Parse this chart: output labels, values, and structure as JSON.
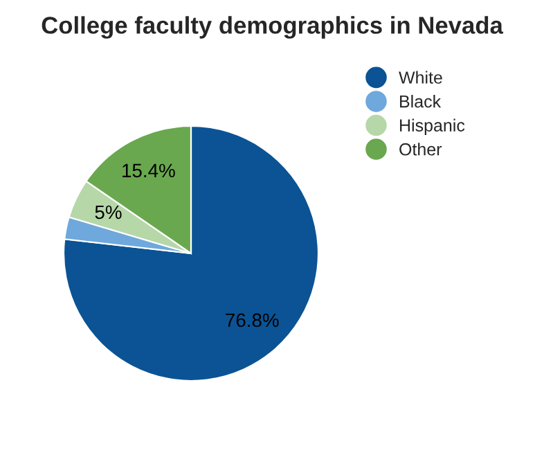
{
  "chart_data": {
    "type": "pie",
    "title": "College faculty demographics in Nevada",
    "categories": [
      "White",
      "Black",
      "Hispanic",
      "Other"
    ],
    "values": [
      76.8,
      2.8,
      5,
      15.4
    ],
    "value_labels": [
      "76.8%",
      null,
      "5%",
      "15.4%"
    ],
    "colors": [
      "#0b5394",
      "#6fa8dc",
      "#b6d7a8",
      "#6aa84f"
    ],
    "legend": "top right"
  }
}
